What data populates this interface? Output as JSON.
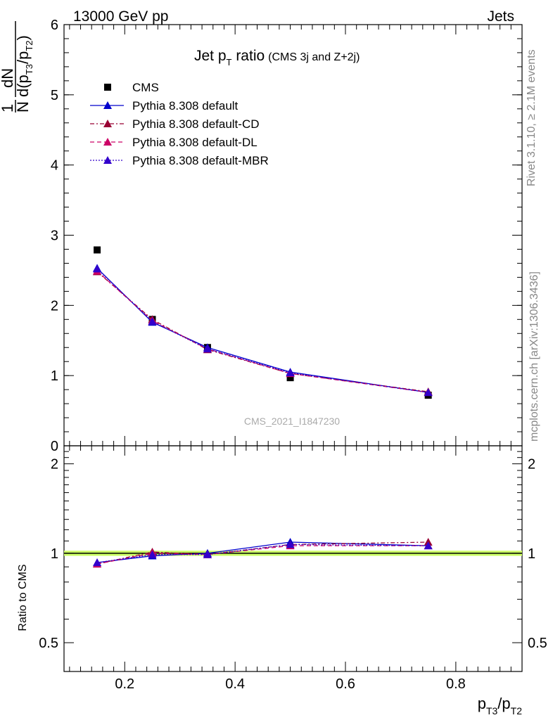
{
  "header": {
    "left": "13000 GeV pp",
    "right": "Jets"
  },
  "plot_title": {
    "main": "Jet p",
    "main_sub": "T",
    "main_after": " ratio",
    "note": "(CMS 3j and Z+2j)"
  },
  "ylabel_top": {
    "frac_num": "1",
    "frac_den": "N",
    "dn": "dN",
    "d": "d(p",
    "sub1": "T3",
    "slash": "/p",
    "sub2": "T2",
    "close": ")"
  },
  "ylabel_bottom": "Ratio to CMS",
  "xlabel": {
    "p1": "p",
    "sub1": "T3",
    "slash": "/p",
    "sub2": "T2"
  },
  "side_text": {
    "rivet": "Rivet 3.1.10, ≥ 2.1M events",
    "mcplots": "mcplots.cern.ch [arXiv:1306.3436]"
  },
  "watermark": "CMS_2021_I1847230",
  "legend": [
    {
      "label": "CMS",
      "color": "#000000",
      "marker": "square",
      "dash": null
    },
    {
      "label": "Pythia 8.308 default",
      "color": "#0000cc",
      "marker": "triangle",
      "dash": "solid"
    },
    {
      "label": "Pythia 8.308 default-CD",
      "color": "#990033",
      "marker": "triangle",
      "dash": "dashdot"
    },
    {
      "label": "Pythia 8.308 default-DL",
      "color": "#cc0066",
      "marker": "triangle",
      "dash": "dashed"
    },
    {
      "label": "Pythia 8.308 default-MBR",
      "color": "#3300cc",
      "marker": "triangle",
      "dash": "dotted"
    }
  ],
  "chart_data": [
    {
      "type": "line",
      "panel": "main",
      "xlim": [
        0.09,
        0.92
      ],
      "ylim": [
        0,
        6
      ],
      "x_ticks": [
        0.2,
        0.4,
        0.6,
        0.8
      ],
      "y_ticks": [
        "0",
        "1",
        "2",
        "3",
        "4",
        "5",
        "6"
      ],
      "x": [
        0.15,
        0.25,
        0.35,
        0.5,
        0.75
      ],
      "series": [
        {
          "name": "CMS",
          "values": [
            2.79,
            1.8,
            1.4,
            0.97,
            0.72
          ]
        },
        {
          "name": "Pythia 8.308 default",
          "values": [
            2.53,
            1.76,
            1.4,
            1.05,
            0.76
          ]
        },
        {
          "name": "Pythia 8.308 default-CD",
          "values": [
            2.48,
            1.8,
            1.37,
            1.03,
            0.77
          ]
        },
        {
          "name": "Pythia 8.308 default-DL",
          "values": [
            2.49,
            1.78,
            1.38,
            1.03,
            0.76
          ]
        },
        {
          "name": "Pythia 8.308 default-MBR",
          "values": [
            2.52,
            1.77,
            1.38,
            1.04,
            0.76
          ]
        }
      ]
    },
    {
      "type": "line",
      "panel": "ratio",
      "xlim": [
        0.09,
        0.92
      ],
      "ylim": [
        0.4,
        2.3
      ],
      "y_scale": "log",
      "y_ticks": [
        "0.5",
        "1",
        "2"
      ],
      "x": [
        0.15,
        0.25,
        0.35,
        0.5,
        0.75
      ],
      "series": [
        {
          "name": "Pythia 8.308 default",
          "values": [
            0.93,
            0.98,
            1.0,
            1.09,
            1.06
          ]
        },
        {
          "name": "Pythia 8.308 default-CD",
          "values": [
            0.92,
            1.01,
            0.99,
            1.07,
            1.09
          ]
        },
        {
          "name": "Pythia 8.308 default-DL",
          "values": [
            0.92,
            1.0,
            0.99,
            1.06,
            1.06
          ]
        },
        {
          "name": "Pythia 8.308 default-MBR",
          "values": [
            0.93,
            0.99,
            0.99,
            1.07,
            1.06
          ]
        }
      ],
      "band": {
        "color": "#ccff66",
        "low": 0.98,
        "high": 1.02
      }
    }
  ]
}
